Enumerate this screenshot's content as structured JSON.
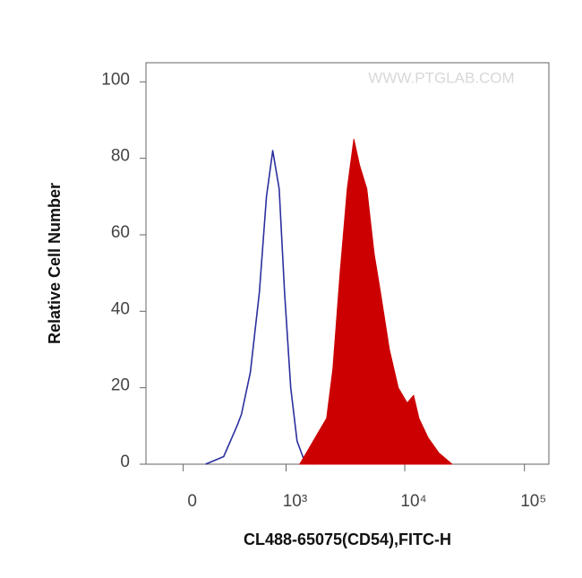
{
  "chart_data": {
    "type": "line",
    "xlabel": "CL488-65075(CD54),FITC-H",
    "ylabel": "Relative Cell Number",
    "watermark": "WWW.PTGLAB.COM",
    "xscale": "asinh",
    "asinh_width": 282,
    "xlim": [
      -220,
      160000
    ],
    "xticks": [
      0,
      {
        "value": 1000,
        "label": "10³"
      },
      {
        "value": 10000,
        "label": "10⁴"
      },
      {
        "value": 100000,
        "label": "10⁵"
      }
    ],
    "ylim": [
      0,
      105
    ],
    "yticks": [
      0,
      20,
      40,
      60,
      80,
      100
    ],
    "series": [
      {
        "color": "#2b2f9e",
        "filled": false,
        "x": [
          125,
          242,
          347,
          386,
          474,
          578,
          671,
          764,
          871,
          970,
          1097,
          1244,
          1433,
          1706
        ],
        "values": [
          0,
          2,
          10,
          13,
          24,
          45,
          70,
          82,
          72,
          45,
          20,
          6,
          1,
          0
        ]
      },
      {
        "color": "#cc0000",
        "filled": true,
        "x": [
          1311,
          1565,
          1861,
          2217,
          2504,
          2876,
          3299,
          3751,
          4202,
          4822,
          5555,
          6260,
          7445,
          8827,
          10490,
          11844,
          13141,
          15623,
          19204,
          24844
        ],
        "values": [
          0,
          4,
          8,
          12,
          25,
          50,
          72,
          85,
          78,
          72,
          55,
          45,
          30,
          20,
          16,
          18,
          12,
          7,
          3,
          0
        ]
      }
    ]
  }
}
